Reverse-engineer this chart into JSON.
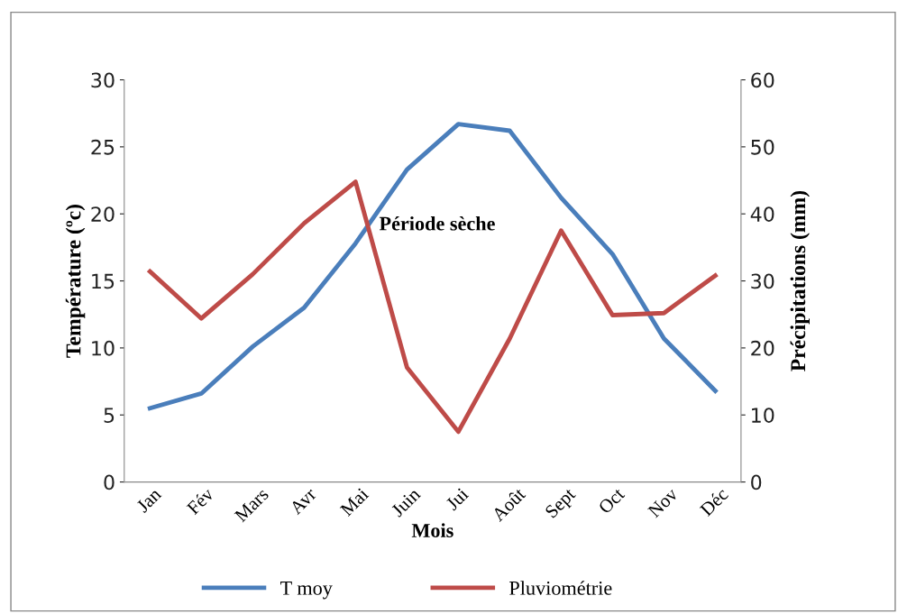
{
  "chart_data": {
    "type": "line",
    "xlabel": "Mois",
    "ylabel": "Température (ºc)",
    "y2label": "Précipitations (mm)",
    "categories": [
      "Jan",
      "Fév",
      "Mars",
      "Avr",
      "Mai",
      "Juin",
      "Jui",
      "Août",
      "Sept",
      "Oct",
      "Nov",
      "Déc"
    ],
    "series": [
      {
        "name": "T moy",
        "color": "#4a7ebb",
        "values": [
          5.5,
          6.6,
          10.1,
          13.0,
          17.8,
          23.3,
          26.7,
          26.2,
          21.2,
          17.0,
          10.7,
          6.8
        ]
      },
      {
        "name": "Pluviométrie",
        "color": "#be4b48",
        "axis": "y2",
        "values": [
          31.4,
          24.4,
          31.0,
          38.6,
          44.8,
          17.1,
          7.5,
          21.4,
          37.5,
          24.9,
          25.2,
          30.8
        ]
      }
    ],
    "ylim": [
      0,
      30
    ],
    "yticks": [
      0,
      5,
      10,
      15,
      20,
      25,
      30
    ],
    "y2lim": [
      0,
      60
    ],
    "y2ticks": [
      0,
      10,
      20,
      30,
      40,
      50,
      60
    ],
    "annotations": [
      "Période sèche"
    ],
    "grid": false,
    "legend": "bottom",
    "marker": "none",
    "line_style": "solid"
  }
}
